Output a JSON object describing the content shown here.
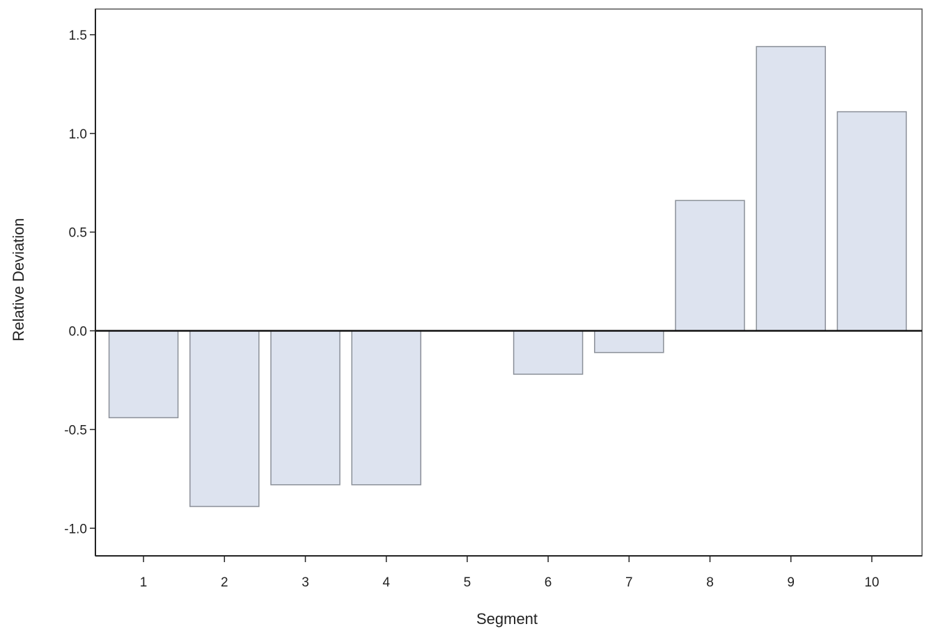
{
  "chart_data": {
    "type": "bar",
    "title": "",
    "xlabel": "Segment",
    "ylabel": "Relative Deviation",
    "categories": [
      "1",
      "2",
      "3",
      "4",
      "5",
      "6",
      "7",
      "8",
      "9",
      "10"
    ],
    "values": [
      -0.44,
      -0.89,
      -0.78,
      -0.78,
      0.0,
      -0.22,
      -0.11,
      0.66,
      1.44,
      1.11
    ],
    "ylim": [
      -1.14,
      1.63
    ],
    "yticks": [
      1.5,
      1.0,
      0.5,
      0.0,
      -0.5,
      -1.0
    ],
    "ytick_labels": [
      "1.5",
      "1.0",
      "0.5",
      "0.0",
      "-0.5",
      "-1.0"
    ],
    "reference_line": 0.0,
    "grid": false,
    "legend": "none",
    "colors": {
      "bar_fill": "#dde3ef",
      "bar_stroke": "#8a8f98",
      "zero_line": "#111111"
    }
  }
}
